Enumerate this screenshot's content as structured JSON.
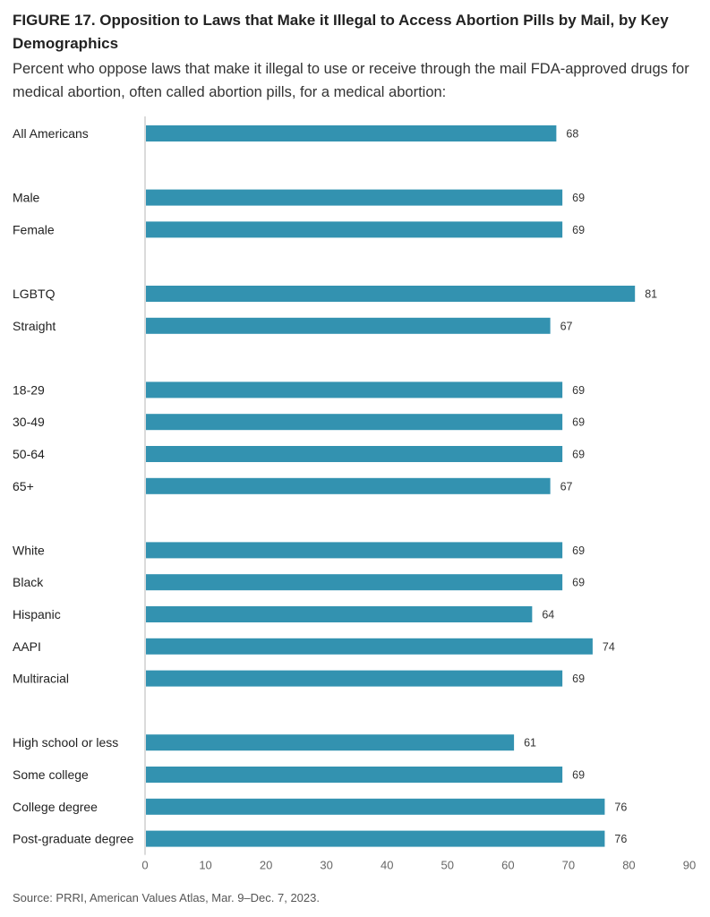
{
  "figure": {
    "title": "FIGURE 17. Opposition to Laws that Make it Illegal to Access Abortion Pills by Mail, by Key Demographics",
    "subtitle": "Percent who oppose laws that make it illegal to use or receive through the mail FDA-approved drugs for medical abortion, often called abortion pills, for a medical abortion:",
    "source": "Source: PRRI, American Values Atlas, Mar. 9–Dec. 7, 2023."
  },
  "chart_data": {
    "type": "bar",
    "orientation": "horizontal",
    "categories": [
      "All Americans",
      "Male",
      "Female",
      "LGBTQ",
      "Straight",
      "18-29",
      "30-49",
      "50-64",
      "65+",
      "White",
      "Black",
      "Hispanic",
      "AAPI",
      "Multiracial",
      "High school or less",
      "Some college",
      "College degree",
      "Post-graduate degree"
    ],
    "groups": [
      [
        "All Americans"
      ],
      [
        "Male",
        "Female"
      ],
      [
        "LGBTQ",
        "Straight"
      ],
      [
        "18-29",
        "30-49",
        "50-64",
        "65+"
      ],
      [
        "White",
        "Black",
        "Hispanic",
        "AAPI",
        "Multiracial"
      ],
      [
        "High school or less",
        "Some college",
        "College degree",
        "Post-graduate degree"
      ]
    ],
    "values": [
      68,
      69,
      69,
      81,
      67,
      69,
      69,
      69,
      67,
      69,
      69,
      64,
      74,
      69,
      61,
      69,
      76,
      76
    ],
    "xlim": [
      0,
      90
    ],
    "xticks": [
      0,
      10,
      20,
      30,
      40,
      50,
      60,
      70,
      80,
      90
    ],
    "grid": false,
    "data_labels": true,
    "bar_color": "#3392b0"
  }
}
